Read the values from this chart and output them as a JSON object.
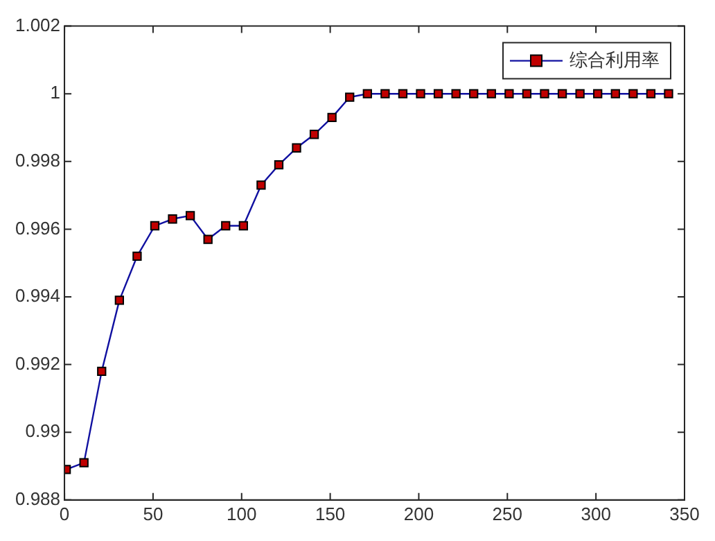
{
  "chart_data": {
    "type": "line",
    "x": [
      1,
      11,
      21,
      31,
      41,
      51,
      61,
      71,
      81,
      91,
      101,
      111,
      121,
      131,
      141,
      151,
      161,
      171,
      181,
      191,
      201,
      211,
      221,
      231,
      241,
      251,
      261,
      271,
      281,
      291,
      301,
      311,
      321,
      331,
      341
    ],
    "series": [
      {
        "name": "综合利用率",
        "color": "#1010a0",
        "colors": [
          "#c00000",
          "#c00000",
          "#c00000",
          "#c00000",
          "#c00000",
          "#c00000",
          "#c00000",
          "#c00000",
          "#c00000",
          "#c00000",
          "#c00000",
          "#c00000",
          "#c00000",
          "#c00000",
          "#c00000",
          "#c00000",
          "#c00000",
          "#c00000",
          "#c00000",
          "#c00000",
          "#c00000",
          "#c00000",
          "#c00000",
          "#c00000",
          "#c00000",
          "#c00000",
          "#c00000",
          "#c00000",
          "#c00000",
          "#c00000",
          "#c00000",
          "#c00000",
          "#c00000",
          "#c00000",
          "#c00000"
        ],
        "values": [
          0.9889,
          0.9891,
          0.9918,
          0.9939,
          0.9952,
          0.9961,
          0.9963,
          0.9964,
          0.9957,
          0.9961,
          0.9961,
          0.9973,
          0.9979,
          0.9984,
          0.9988,
          0.9993,
          0.9999,
          1,
          1,
          1,
          1,
          1,
          1,
          1,
          1,
          1,
          1,
          1,
          1,
          1,
          1,
          1,
          1,
          1,
          1
        ]
      }
    ],
    "xlim": [
      0,
      350
    ],
    "xticks": [
      0,
      50,
      100,
      150,
      200,
      250,
      300,
      350
    ],
    "ylim": [
      0.988,
      1.002
    ],
    "yticks": [
      0.988,
      0.99,
      0.992,
      0.994,
      0.996,
      0.998,
      1,
      1.002
    ],
    "marker": "square",
    "line_style": "solid",
    "legend": "top right",
    "grid": false
  }
}
